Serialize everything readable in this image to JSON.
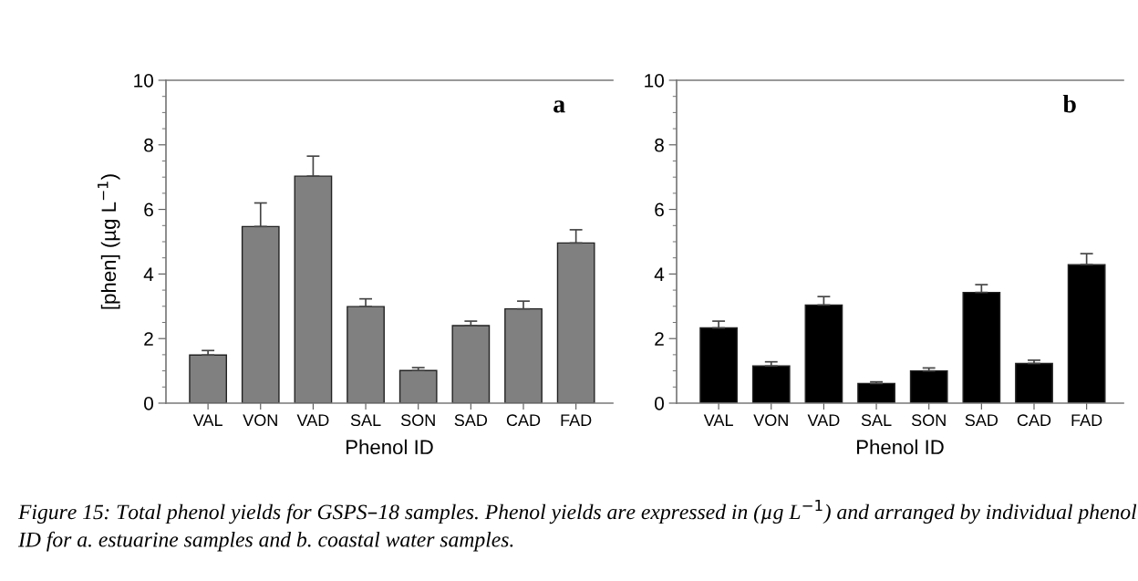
{
  "chart_data": [
    {
      "type": "bar",
      "title": "a",
      "xlabel": "Phenol ID",
      "ylabel": "[phen] (µg L$^{−1}$)",
      "categories": [
        "VAL",
        "VON",
        "VAD",
        "SAL",
        "SON",
        "SAD",
        "CAD",
        "FAD"
      ],
      "values": [
        1.49,
        5.47,
        7.03,
        2.99,
        1.01,
        2.4,
        2.92,
        4.96
      ],
      "errors": [
        0.14,
        0.73,
        0.62,
        0.24,
        0.09,
        0.14,
        0.24,
        0.41
      ],
      "color": "#808080",
      "ylim": [
        0,
        10
      ],
      "yticks": [
        0,
        2,
        4,
        6,
        8,
        10
      ],
      "grid": false,
      "annotations": [
        "Figure 15: Total phenol yields for GSPS–18 samples. Phenol yields are expressed in (µg L$^{−1}$) and arranged by individual phenol ID for a. estuarine samples and b. coastal water samples."
      ]
    },
    {
      "type": "bar",
      "title": "b",
      "xlabel": "Phenol ID",
      "categories": [
        "VAL",
        "VON",
        "VAD",
        "SAL",
        "SON",
        "SAD",
        "CAD",
        "FAD"
      ],
      "values": [
        2.33,
        1.15,
        3.04,
        0.61,
        1.0,
        3.43,
        1.23,
        4.29
      ],
      "errors": [
        0.21,
        0.13,
        0.26,
        0.05,
        0.09,
        0.24,
        0.1,
        0.34
      ],
      "color": "#000000",
      "ylim": [
        0,
        10
      ],
      "yticks": [
        0,
        2,
        4,
        6,
        8,
        10
      ],
      "grid": false
    }
  ]
}
